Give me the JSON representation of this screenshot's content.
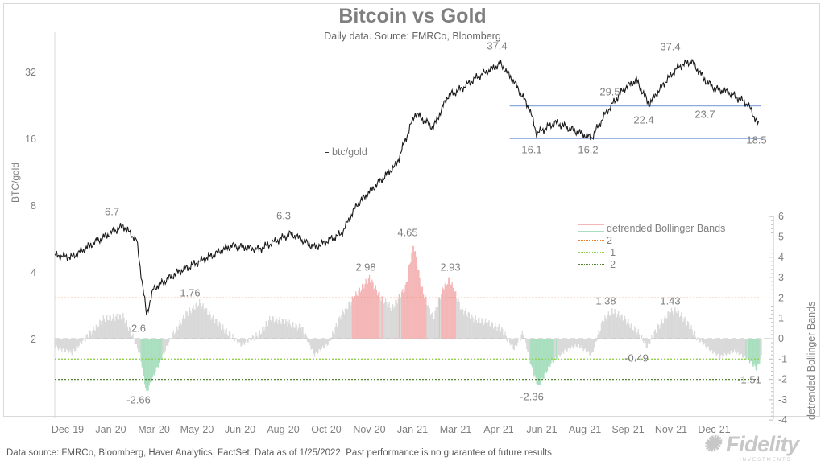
{
  "chart_data": [
    {
      "type": "line",
      "title": "Bitcoin vs Gold",
      "subtitle": "Daily data.  Source: FMRCo, Bloomberg",
      "ylabel": "BTC/gold",
      "yscale": "log2",
      "ylim": [
        1.6,
        45
      ],
      "yticks": [
        "32",
        "16",
        "8",
        "4",
        "2"
      ],
      "xticks": [
        "Dec-19",
        "Jan-20",
        "Mar-20",
        "May-20",
        "Jun-20",
        "Aug-20",
        "Oct-20",
        "Nov-20",
        "Jan-21",
        "Mar-21",
        "Apr-21",
        "Jun-21",
        "Aug-21",
        "Sep-21",
        "Nov-21",
        "Dec-21"
      ],
      "series": [
        {
          "name": "btc/gold",
          "color": "#1a1a1a",
          "points": [
            [
              "2019-12-01",
              4.8
            ],
            [
              "2019-12-20",
              4.7
            ],
            [
              "2020-01-15",
              5.5
            ],
            [
              "2020-02-15",
              6.5
            ],
            [
              "2020-03-01",
              5.6
            ],
            [
              "2020-03-12",
              2.6
            ],
            [
              "2020-03-20",
              3.4
            ],
            [
              "2020-04-15",
              4.0
            ],
            [
              "2020-05-10",
              4.5
            ],
            [
              "2020-06-15",
              5.3
            ],
            [
              "2020-07-15",
              5.1
            ],
            [
              "2020-08-20",
              6.0
            ],
            [
              "2020-09-15",
              5.2
            ],
            [
              "2020-10-15",
              6.0
            ],
            [
              "2020-11-01",
              8.1
            ],
            [
              "2020-11-20",
              9.7
            ],
            [
              "2020-12-15",
              12.3
            ],
            [
              "2021-01-05",
              21
            ],
            [
              "2021-01-25",
              18
            ],
            [
              "2021-02-10",
              25
            ],
            [
              "2021-02-25",
              27
            ],
            [
              "2021-03-15",
              30.5
            ],
            [
              "2021-04-10",
              35
            ],
            [
              "2021-04-25",
              29
            ],
            [
              "2021-05-12",
              22
            ],
            [
              "2021-05-20",
              17
            ],
            [
              "2021-06-10",
              19
            ],
            [
              "2021-07-01",
              17.5
            ],
            [
              "2021-07-20",
              16.2
            ],
            [
              "2021-08-05",
              21
            ],
            [
              "2021-08-25",
              27
            ],
            [
              "2021-09-08",
              29.5
            ],
            [
              "2021-09-22",
              23
            ],
            [
              "2021-10-10",
              29
            ],
            [
              "2021-10-25",
              34
            ],
            [
              "2021-11-08",
              36
            ],
            [
              "2021-11-25",
              29
            ],
            [
              "2021-12-05",
              27
            ],
            [
              "2021-12-20",
              26
            ],
            [
              "2022-01-10",
              23
            ],
            [
              "2022-01-22",
              18.5
            ]
          ]
        }
      ],
      "reference_lines": [
        {
          "value": 22.6,
          "from": "2021-04-20",
          "color": "#8ea9db"
        },
        {
          "value": 16.1,
          "from": "2021-04-20",
          "color": "#8ea9db"
        }
      ],
      "annotations": [
        "6.7",
        "2.6",
        "6.3",
        "37.4",
        "16.1",
        "16.2",
        "29.5",
        "22.4",
        "37.4",
        "23.7",
        "18.5"
      ],
      "series_label": "btc/gold"
    },
    {
      "type": "bar",
      "ylabel": "detrended Bollinger Bands",
      "ylim": [
        -4,
        6
      ],
      "yticks": [
        "6",
        "5",
        "4",
        "3",
        "2",
        "1",
        "0",
        "-1",
        "-2",
        "-3",
        "-4"
      ],
      "legend": [
        "detrended Bollinger Bands",
        "2",
        "-1",
        "-2"
      ],
      "legend_position": "top-right",
      "colors": {
        "above_2": "#f4b6b6",
        "below_minus1": "#a9dfbf",
        "normal": "#d9d9d9",
        "line_2": "#ed7d31",
        "line_minus1": "#92d050",
        "line_minus2": "#548235"
      },
      "thresholds": [
        2,
        -1,
        -2
      ],
      "points": [
        [
          "2019-12-01",
          -0.4
        ],
        [
          "2019-12-20",
          -0.7
        ],
        [
          "2020-01-10",
          0.3
        ],
        [
          "2020-01-25",
          1.0
        ],
        [
          "2020-02-15",
          1.1
        ],
        [
          "2020-02-25",
          0.2
        ],
        [
          "2020-03-05",
          -0.8
        ],
        [
          "2020-03-12",
          -2.66
        ],
        [
          "2020-03-25",
          -1.3
        ],
        [
          "2020-04-10",
          0.2
        ],
        [
          "2020-04-25",
          1.2
        ],
        [
          "2020-05-10",
          1.76
        ],
        [
          "2020-05-25",
          1.0
        ],
        [
          "2020-06-10",
          0.3
        ],
        [
          "2020-06-25",
          -0.3
        ],
        [
          "2020-07-15",
          0.2
        ],
        [
          "2020-07-28",
          1.0
        ],
        [
          "2020-08-15",
          0.8
        ],
        [
          "2020-09-01",
          0.5
        ],
        [
          "2020-09-15",
          -0.8
        ],
        [
          "2020-10-01",
          -0.2
        ],
        [
          "2020-10-15",
          1.2
        ],
        [
          "2020-11-01",
          2.2
        ],
        [
          "2020-11-15",
          2.98
        ],
        [
          "2020-11-28",
          2.0
        ],
        [
          "2020-12-10",
          1.5
        ],
        [
          "2020-12-25",
          2.5
        ],
        [
          "2021-01-03",
          4.65
        ],
        [
          "2021-01-12",
          2.5
        ],
        [
          "2021-01-25",
          1.0
        ],
        [
          "2021-02-05",
          2.5
        ],
        [
          "2021-02-12",
          2.93
        ],
        [
          "2021-02-25",
          1.5
        ],
        [
          "2021-03-10",
          1.0
        ],
        [
          "2021-03-25",
          0.8
        ],
        [
          "2021-04-10",
          0.5
        ],
        [
          "2021-04-25",
          -0.5
        ],
        [
          "2021-05-05",
          0.3
        ],
        [
          "2021-05-15",
          -1.5
        ],
        [
          "2021-05-22",
          -2.36
        ],
        [
          "2021-06-05",
          -1.2
        ],
        [
          "2021-06-20",
          -0.6
        ],
        [
          "2021-07-05",
          -0.3
        ],
        [
          "2021-07-20",
          -0.8
        ],
        [
          "2021-08-01",
          0.8
        ],
        [
          "2021-08-12",
          1.38
        ],
        [
          "2021-08-25",
          1.0
        ],
        [
          "2021-09-10",
          0.3
        ],
        [
          "2021-09-20",
          -0.4
        ],
        [
          "2021-10-01",
          0.5
        ],
        [
          "2021-10-15",
          1.3
        ],
        [
          "2021-10-22",
          1.43
        ],
        [
          "2021-11-05",
          0.7
        ],
        [
          "2021-11-15",
          0.0
        ],
        [
          "2021-11-25",
          -0.4
        ],
        [
          "2021-12-10",
          -0.9
        ],
        [
          "2021-12-25",
          -0.6
        ],
        [
          "2022-01-10",
          -1.0
        ],
        [
          "2022-01-20",
          -1.51
        ],
        [
          "2022-01-25",
          -0.9
        ]
      ],
      "annotations": [
        "-2.66",
        "1.76",
        "2.98",
        "4.65",
        "2.93",
        "-2.36",
        "1.38",
        "1.43",
        "-0.49",
        "-1.51"
      ]
    }
  ],
  "footer": "Data source: FMRCo, Bloomberg, Haver Analytics, FactSet. Data as of 1/25/2022. Past performance is no guarantee of future results.",
  "logo": {
    "name": "Fidelity",
    "sub": "INVESTMENTS"
  }
}
